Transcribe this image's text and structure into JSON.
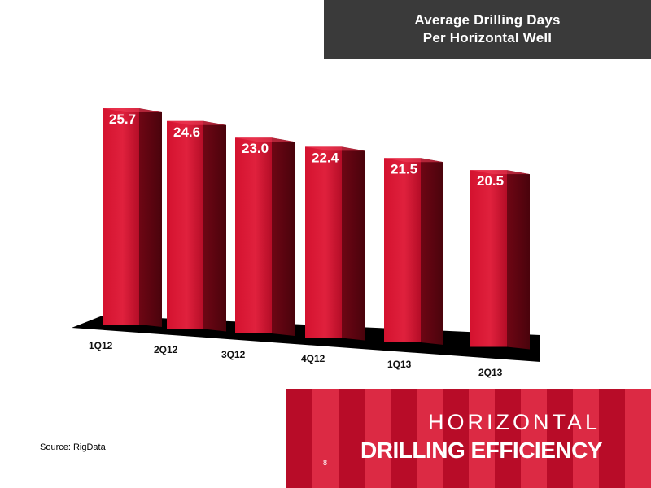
{
  "header": {
    "title_line1": "Average Drilling Days",
    "title_line2": "Per Horizontal Well"
  },
  "chart_data": {
    "type": "bar",
    "title": "Average Drilling Days Per Horizontal Well",
    "categories": [
      "1Q12",
      "2Q12",
      "3Q12",
      "4Q12",
      "1Q13",
      "2Q13"
    ],
    "values": [
      25.7,
      24.6,
      23.0,
      22.4,
      21.5,
      20.5
    ],
    "value_labels": [
      "25.7",
      "24.6",
      "23.0",
      "22.4",
      "21.5",
      "20.5"
    ],
    "xlabel": "",
    "ylabel": "",
    "grid": false,
    "style": "3d",
    "colors": {
      "bar_front": "#d4122f",
      "bar_side": "#6e0614",
      "bar_top": "#f0405a",
      "floor": "#000000"
    }
  },
  "source": "Source: RigData",
  "banner": {
    "line1": "HORIZONTAL",
    "line2": "DRILLING EFFICIENCY",
    "page_number": "8",
    "color": "#c8102e"
  }
}
